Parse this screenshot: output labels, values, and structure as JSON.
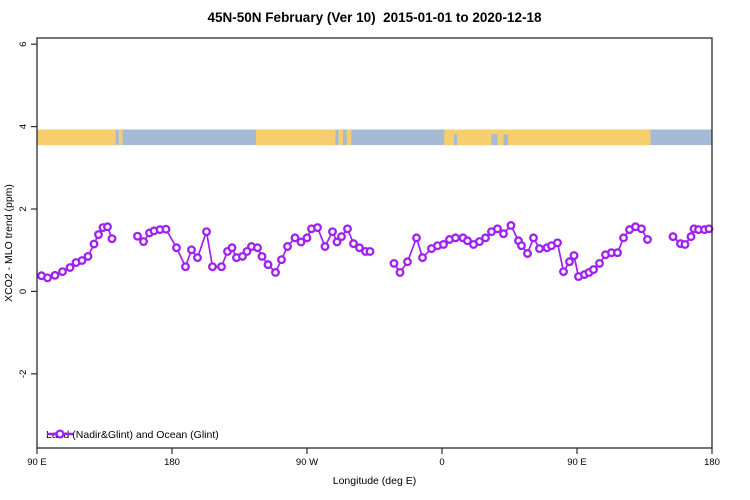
{
  "chart_data": {
    "type": "scatter-line",
    "title": "45N-50N February (Ver 10)  2015-01-01 to 2020-12-18",
    "xlabel": "Longitude (deg E)",
    "ylabel": "XCO2 - MLO trend (ppm)",
    "xlim": [
      90,
      540
    ],
    "ylim": [
      -3.8,
      6.15
    ],
    "grid": false,
    "x_ticks": [
      {
        "pos": 90,
        "label": "90 E"
      },
      {
        "pos": 180,
        "label": "180"
      },
      {
        "pos": 270,
        "label": "90 W"
      },
      {
        "pos": 360,
        "label": "0"
      },
      {
        "pos": 450,
        "label": "90 E"
      },
      {
        "pos": 540,
        "label": "180"
      }
    ],
    "y_ticks": [
      {
        "pos": -2,
        "label": "-2"
      },
      {
        "pos": 0,
        "label": "0"
      },
      {
        "pos": 2,
        "label": "2"
      },
      {
        "pos": 4,
        "label": "4"
      },
      {
        "pos": 6,
        "label": "6"
      }
    ],
    "series_color": "#A020F0",
    "marker": "open-circle",
    "legend": {
      "label": "Land (Nadir&Glint) and Ocean (Glint)",
      "position": "bottom-left"
    },
    "surface_band": {
      "description": "land/ocean surface-type strip",
      "value_top": 3.93,
      "value_bottom": 3.55,
      "ocean_color": "#A6BAD6",
      "land_color": "#F7CE6D",
      "base": "ocean",
      "land_segments": [
        [
          90,
          142.5
        ],
        [
          144.5,
          147
        ],
        [
          236,
          289
        ],
        [
          291,
          294
        ],
        [
          296.5,
          299.5
        ],
        [
          361.5,
          499
        ]
      ],
      "ocean_patches": [
        [
          368,
          370
        ],
        [
          393,
          397
        ],
        [
          401,
          404
        ]
      ]
    },
    "series": [
      {
        "name": "Land (Nadir&Glint) and Ocean (Glint)",
        "segments": [
          [
            [
              93,
              0.38
            ],
            [
              97,
              0.33
            ],
            [
              102,
              0.39
            ],
            [
              107,
              0.48
            ],
            [
              112,
              0.58
            ],
            [
              116,
              0.7
            ],
            [
              120,
              0.75
            ],
            [
              124,
              0.85
            ],
            [
              128,
              1.15
            ],
            [
              131,
              1.38
            ],
            [
              134,
              1.55
            ],
            [
              137,
              1.57
            ],
            [
              140,
              1.28
            ]
          ],
          [
            [
              157,
              1.34
            ],
            [
              161,
              1.21
            ],
            [
              165,
              1.42
            ],
            [
              168,
              1.47
            ],
            [
              172,
              1.5
            ],
            [
              176,
              1.51
            ],
            [
              183,
              1.06
            ],
            [
              189,
              0.6
            ],
            [
              193,
              1.01
            ],
            [
              197,
              0.82
            ],
            [
              203,
              1.45
            ],
            [
              207,
              0.6
            ],
            [
              213,
              0.6
            ],
            [
              217,
              0.97
            ],
            [
              220,
              1.06
            ],
            [
              223,
              0.82
            ],
            [
              227,
              0.85
            ],
            [
              230,
              0.97
            ],
            [
              233,
              1.09
            ],
            [
              237,
              1.06
            ],
            [
              240,
              0.85
            ],
            [
              244,
              0.65
            ],
            [
              249,
              0.46
            ],
            [
              253,
              0.77
            ],
            [
              257,
              1.09
            ],
            [
              262,
              1.3
            ],
            [
              266,
              1.2
            ],
            [
              270,
              1.3
            ],
            [
              273,
              1.52
            ],
            [
              277,
              1.55
            ],
            [
              282,
              1.09
            ],
            [
              287,
              1.45
            ],
            [
              290,
              1.2
            ],
            [
              293,
              1.33
            ],
            [
              297,
              1.52
            ],
            [
              301,
              1.16
            ],
            [
              305,
              1.06
            ],
            [
              309,
              0.97
            ],
            [
              312,
              0.97
            ]
          ],
          [
            [
              328,
              0.68
            ],
            [
              332,
              0.46
            ],
            [
              337,
              0.72
            ],
            [
              343,
              1.3
            ],
            [
              347,
              0.82
            ],
            [
              353,
              1.04
            ],
            [
              357,
              1.11
            ],
            [
              361,
              1.14
            ],
            [
              365,
              1.26
            ],
            [
              369,
              1.3
            ],
            [
              374,
              1.3
            ],
            [
              377,
              1.23
            ],
            [
              381,
              1.14
            ],
            [
              385,
              1.21
            ],
            [
              389,
              1.3
            ],
            [
              393,
              1.45
            ],
            [
              397,
              1.52
            ],
            [
              401,
              1.4
            ],
            [
              406,
              1.6
            ],
            [
              411,
              1.23
            ],
            [
              413,
              1.11
            ],
            [
              417,
              0.92
            ],
            [
              421,
              1.3
            ],
            [
              425,
              1.04
            ],
            [
              430,
              1.06
            ],
            [
              433,
              1.11
            ],
            [
              437,
              1.18
            ],
            [
              441,
              0.48
            ],
            [
              445,
              0.72
            ],
            [
              448,
              0.87
            ],
            [
              451,
              0.36
            ],
            [
              455,
              0.41
            ],
            [
              458,
              0.46
            ],
            [
              461,
              0.53
            ],
            [
              465,
              0.68
            ],
            [
              469,
              0.89
            ],
            [
              473,
              0.94
            ],
            [
              477,
              0.94
            ],
            [
              481,
              1.3
            ],
            [
              485,
              1.5
            ],
            [
              489,
              1.57
            ],
            [
              493,
              1.52
            ],
            [
              497,
              1.26
            ]
          ],
          [
            [
              514,
              1.33
            ],
            [
              519,
              1.16
            ],
            [
              522,
              1.14
            ],
            [
              526,
              1.33
            ],
            [
              528,
              1.52
            ],
            [
              531,
              1.5
            ],
            [
              535,
              1.5
            ],
            [
              538,
              1.52
            ]
          ]
        ]
      }
    ]
  }
}
